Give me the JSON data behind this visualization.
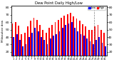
{
  "title": "Dew Point Daily High/Low",
  "ylabel_left": "Milwaukee dew",
  "background_color": "#ffffff",
  "high_color": "#ff0000",
  "low_color": "#0000ff",
  "dashed_line_x": 26.5,
  "days": [
    1,
    2,
    3,
    4,
    5,
    6,
    7,
    8,
    9,
    10,
    11,
    12,
    13,
    14,
    15,
    16,
    17,
    18,
    19,
    20,
    21,
    22,
    23,
    24,
    25,
    26,
    27,
    28,
    29,
    30,
    31
  ],
  "highs": [
    58,
    60,
    55,
    44,
    46,
    54,
    62,
    66,
    63,
    56,
    50,
    46,
    52,
    56,
    60,
    63,
    66,
    69,
    71,
    73,
    68,
    65,
    62,
    57,
    54,
    50,
    50,
    54,
    56,
    50,
    46
  ],
  "lows": [
    40,
    44,
    36,
    28,
    30,
    40,
    46,
    52,
    48,
    40,
    36,
    30,
    38,
    42,
    44,
    48,
    52,
    56,
    58,
    60,
    52,
    48,
    44,
    42,
    38,
    34,
    30,
    36,
    40,
    32,
    28
  ],
  "yticks": [
    20,
    30,
    40,
    50,
    60,
    70,
    80
  ],
  "ylim": [
    15,
    82
  ],
  "legend_high": "High",
  "legend_low": "Low"
}
